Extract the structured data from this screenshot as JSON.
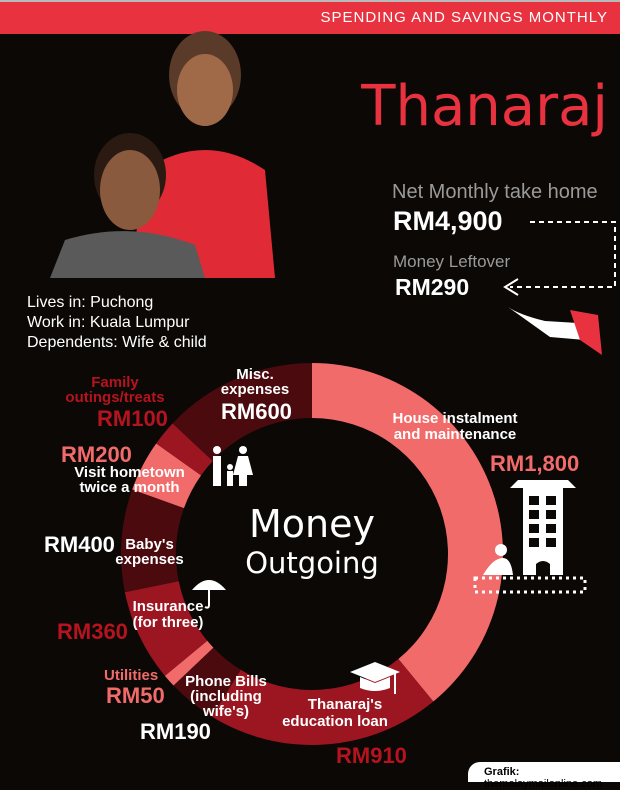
{
  "header": {
    "banner": "SPENDING AND SAVINGS MONTHLY",
    "name": "Thanaraj"
  },
  "income": {
    "net_label": "Net Monthly take home",
    "net_value": "RM4,900",
    "leftover_label": "Money Leftover",
    "leftover_value": "RM290"
  },
  "profile": {
    "lives": "Lives in: Puchong",
    "work": "Work in: Kuala Lumpur",
    "dependents": "Dependents: Wife & child"
  },
  "center": {
    "line1": "Money",
    "line2": "Outgoing"
  },
  "colors": {
    "light": "#f26b6b",
    "red": "#9b1620",
    "dark": "#4a0a0e",
    "accent": "#e8323f"
  },
  "chart_data": {
    "type": "pie",
    "variant": "donut",
    "categories": [
      "House instalment and maintenance",
      "Thanaraj's education loan",
      "Phone Bills (including wife's)",
      "Utilities",
      "Insurance (for three)",
      "Baby's expenses",
      "Visit hometown twice a month",
      "Family outings/treats",
      "Misc. expenses"
    ],
    "values": [
      1800,
      910,
      190,
      50,
      360,
      400,
      200,
      100,
      600
    ],
    "value_labels": [
      "RM1,800",
      "RM910",
      "RM190",
      "RM50",
      "RM360",
      "RM400",
      "RM200",
      "RM100",
      "RM600"
    ],
    "slice_colors": [
      "#f26b6b",
      "#9b1620",
      "#4a0a0e",
      "#f26b6b",
      "#9b1620",
      "#4a0a0e",
      "#f26b6b",
      "#9b1620",
      "#4a0a0e"
    ],
    "labels": {
      "house": "House instalment\nand maintenance",
      "edu1": "Thanaraj's",
      "edu2": "education loan",
      "phone1": "Phone Bills",
      "phone2": "(including",
      "phone3": "wife's)",
      "util": "Utilities",
      "ins1": "Insurance",
      "ins2": "(for three)",
      "baby1": "Baby's",
      "baby2": "expenses",
      "visit1": "Visit hometown",
      "visit2": "twice a month",
      "fam1": "Family",
      "fam2": "outings/treats",
      "misc1": "Misc.",
      "misc2": "expenses"
    }
  },
  "footer": {
    "credit_bold": "Grafik:",
    "credit": "themalaymailonline.com"
  }
}
